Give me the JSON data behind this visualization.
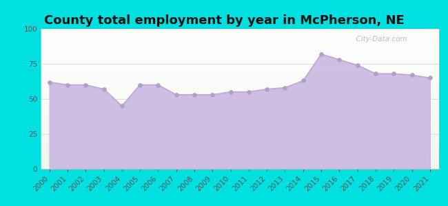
{
  "title": "County total employment by year in McPherson, NE",
  "years": [
    2000,
    2001,
    2002,
    2003,
    2004,
    2005,
    2006,
    2007,
    2008,
    2009,
    2010,
    2011,
    2012,
    2013,
    2014,
    2015,
    2016,
    2017,
    2018,
    2019,
    2020,
    2021
  ],
  "values": [
    62,
    60,
    60,
    57,
    45,
    60,
    60,
    53,
    53,
    53,
    55,
    55,
    57,
    58,
    63,
    82,
    78,
    74,
    68,
    68,
    67,
    65
  ],
  "ylim": [
    0,
    100
  ],
  "yticks": [
    0,
    25,
    50,
    75,
    100
  ],
  "line_color": "#c0a8d8",
  "fill_color": "#c8b4e0",
  "fill_alpha": 0.85,
  "marker_color": "#b09fc8",
  "marker_size": 14,
  "bg_outer": "#00e0e0",
  "bg_plot_white": "#ffffff",
  "gradient_color": "#d4f0d4",
  "title_fontsize": 13,
  "title_color": "#111111",
  "tick_color": "#555555",
  "tick_fontsize": 7.5,
  "watermark": "  City-Data.com",
  "watermark_color": "#a0b8c8",
  "watermark_icon": "©",
  "grid_color": "#dddddd",
  "spine_color": "#bbbbbb"
}
